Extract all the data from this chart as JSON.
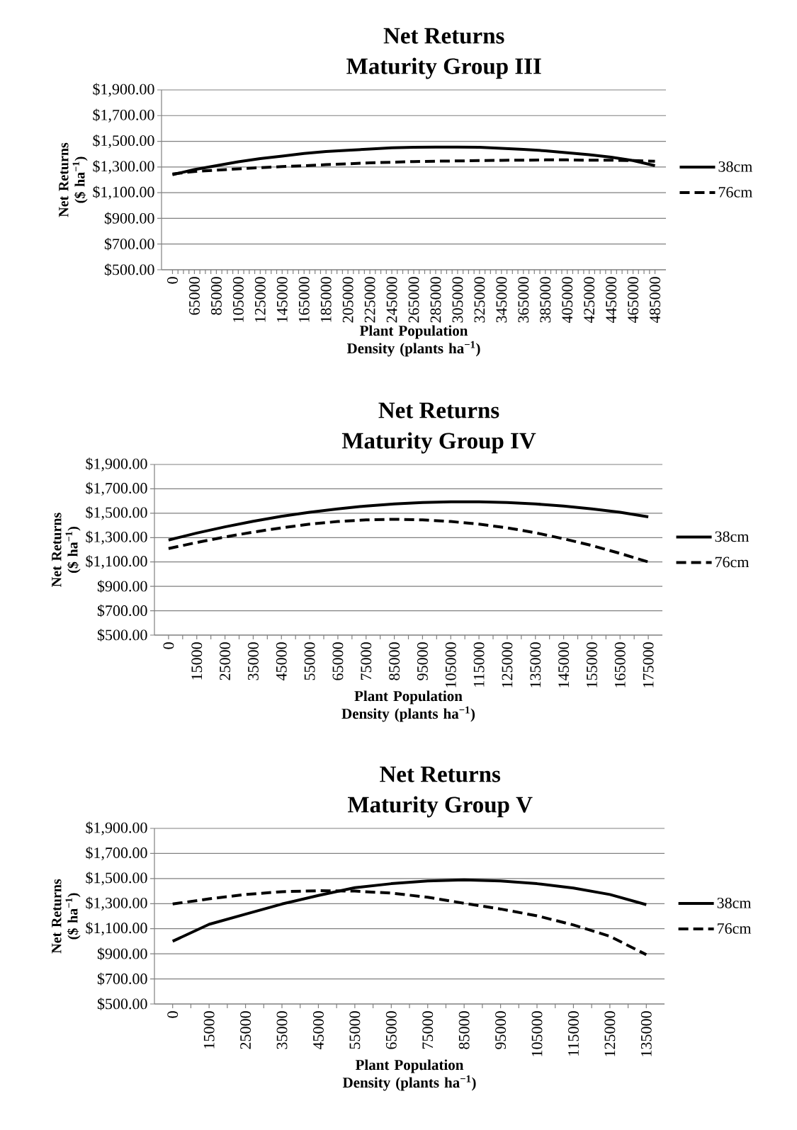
{
  "chart_data": [
    {
      "type": "line",
      "title": "Net Returns",
      "subtitle": "Maturity Group III",
      "xlabel": "Plant Population Density (plants ha$^{−1}$)",
      "ylabel": "Net Returns ($ ha$^{−1}$)",
      "categories": [
        "0",
        "65000",
        "85000",
        "105000",
        "125000",
        "145000",
        "165000",
        "185000",
        "205000",
        "225000",
        "245000",
        "265000",
        "285000",
        "305000",
        "325000",
        "345000",
        "365000",
        "385000",
        "405000",
        "425000",
        "445000",
        "465000",
        "485000"
      ],
      "series": [
        {
          "name": "38cm",
          "color": "#000000",
          "line_style": "solid",
          "values": [
            1240,
            1280,
            1310,
            1340,
            1365,
            1385,
            1405,
            1420,
            1430,
            1440,
            1450,
            1453,
            1455,
            1455,
            1453,
            1445,
            1437,
            1426,
            1411,
            1395,
            1376,
            1350,
            1310
          ]
        },
        {
          "name": "76cm",
          "color": "#000000",
          "line_style": "dashed",
          "values": [
            1245,
            1265,
            1275,
            1285,
            1295,
            1303,
            1310,
            1318,
            1325,
            1332,
            1337,
            1342,
            1345,
            1347,
            1350,
            1352,
            1353,
            1355,
            1355,
            1353,
            1353,
            1350,
            1345
          ]
        }
      ],
      "ylim": [
        500,
        1900
      ],
      "yticks": [
        {
          "value": 500,
          "label": "$500.00"
        },
        {
          "value": 700,
          "label": "$700.00"
        },
        {
          "value": 900,
          "label": "$900.00"
        },
        {
          "value": 1100,
          "label": "$1,100.00"
        },
        {
          "value": 1300,
          "label": "$1,300.00"
        },
        {
          "value": 1500,
          "label": "$1,500.00"
        },
        {
          "value": 1700,
          "label": "$1,700.00"
        },
        {
          "value": 1900,
          "label": "$1,900.00"
        }
      ],
      "grid": "y",
      "legend": "right",
      "marker": "none"
    },
    {
      "type": "line",
      "title": "Net Returns",
      "subtitle": "Maturity Group IV",
      "xlabel": "Plant Population Density (plants ha$^{−1}$)",
      "ylabel": "Net Returns ($ ha$^{−1}$)",
      "categories": [
        "0",
        "15000",
        "25000",
        "35000",
        "45000",
        "55000",
        "65000",
        "75000",
        "85000",
        "95000",
        "105000",
        "115000",
        "125000",
        "135000",
        "145000",
        "155000",
        "165000",
        "175000"
      ],
      "series": [
        {
          "name": "38cm",
          "color": "#000000",
          "line_style": "solid",
          "values": [
            1280,
            1337,
            1388,
            1434,
            1474,
            1508,
            1536,
            1559,
            1576,
            1588,
            1593,
            1593,
            1588,
            1576,
            1559,
            1536,
            1508,
            1470
          ]
        },
        {
          "name": "76cm",
          "color": "#000000",
          "line_style": "dashed",
          "values": [
            1210,
            1260,
            1305,
            1345,
            1380,
            1410,
            1432,
            1445,
            1450,
            1445,
            1432,
            1410,
            1380,
            1340,
            1290,
            1235,
            1170,
            1100
          ]
        }
      ],
      "ylim": [
        500,
        1900
      ],
      "yticks": [
        {
          "value": 500,
          "label": "$500.00"
        },
        {
          "value": 700,
          "label": "$700.00"
        },
        {
          "value": 900,
          "label": "$900.00"
        },
        {
          "value": 1100,
          "label": "$1,100.00"
        },
        {
          "value": 1300,
          "label": "$1,300.00"
        },
        {
          "value": 1500,
          "label": "$1,500.00"
        },
        {
          "value": 1700,
          "label": "$1,700.00"
        },
        {
          "value": 1900,
          "label": "$1,900.00"
        }
      ],
      "grid": "y",
      "legend": "right",
      "marker": "none"
    },
    {
      "type": "line",
      "title": "Net Returns",
      "subtitle": "Maturity Group V",
      "xlabel": "Plant Population Density (plants ha$^{−1}$)",
      "ylabel": "Net Returns ($ ha$^{−1}$)",
      "categories": [
        "0",
        "15000",
        "25000",
        "35000",
        "45000",
        "55000",
        "65000",
        "75000",
        "85000",
        "95000",
        "105000",
        "115000",
        "125000",
        "135000"
      ],
      "series": [
        {
          "name": "38cm",
          "color": "#000000",
          "line_style": "solid",
          "values": [
            1000,
            1135,
            1216,
            1297,
            1365,
            1427,
            1459,
            1481,
            1489,
            1481,
            1459,
            1424,
            1373,
            1292
          ]
        },
        {
          "name": "76cm",
          "color": "#000000",
          "line_style": "dashed",
          "values": [
            1297,
            1338,
            1373,
            1395,
            1403,
            1400,
            1384,
            1351,
            1303,
            1257,
            1203,
            1130,
            1040,
            893
          ]
        }
      ],
      "ylim": [
        500,
        1900
      ],
      "yticks": [
        {
          "value": 500,
          "label": "$500.00"
        },
        {
          "value": 700,
          "label": "$700.00"
        },
        {
          "value": 900,
          "label": "$900.00"
        },
        {
          "value": 1100,
          "label": "$1,100.00"
        },
        {
          "value": 1300,
          "label": "$1,300.00"
        },
        {
          "value": 1500,
          "label": "$1,500.00"
        },
        {
          "value": 1700,
          "label": "$1,700.00"
        },
        {
          "value": 1900,
          "label": "$1,900.00"
        }
      ],
      "grid": "y",
      "legend": "right",
      "marker": "none"
    }
  ]
}
